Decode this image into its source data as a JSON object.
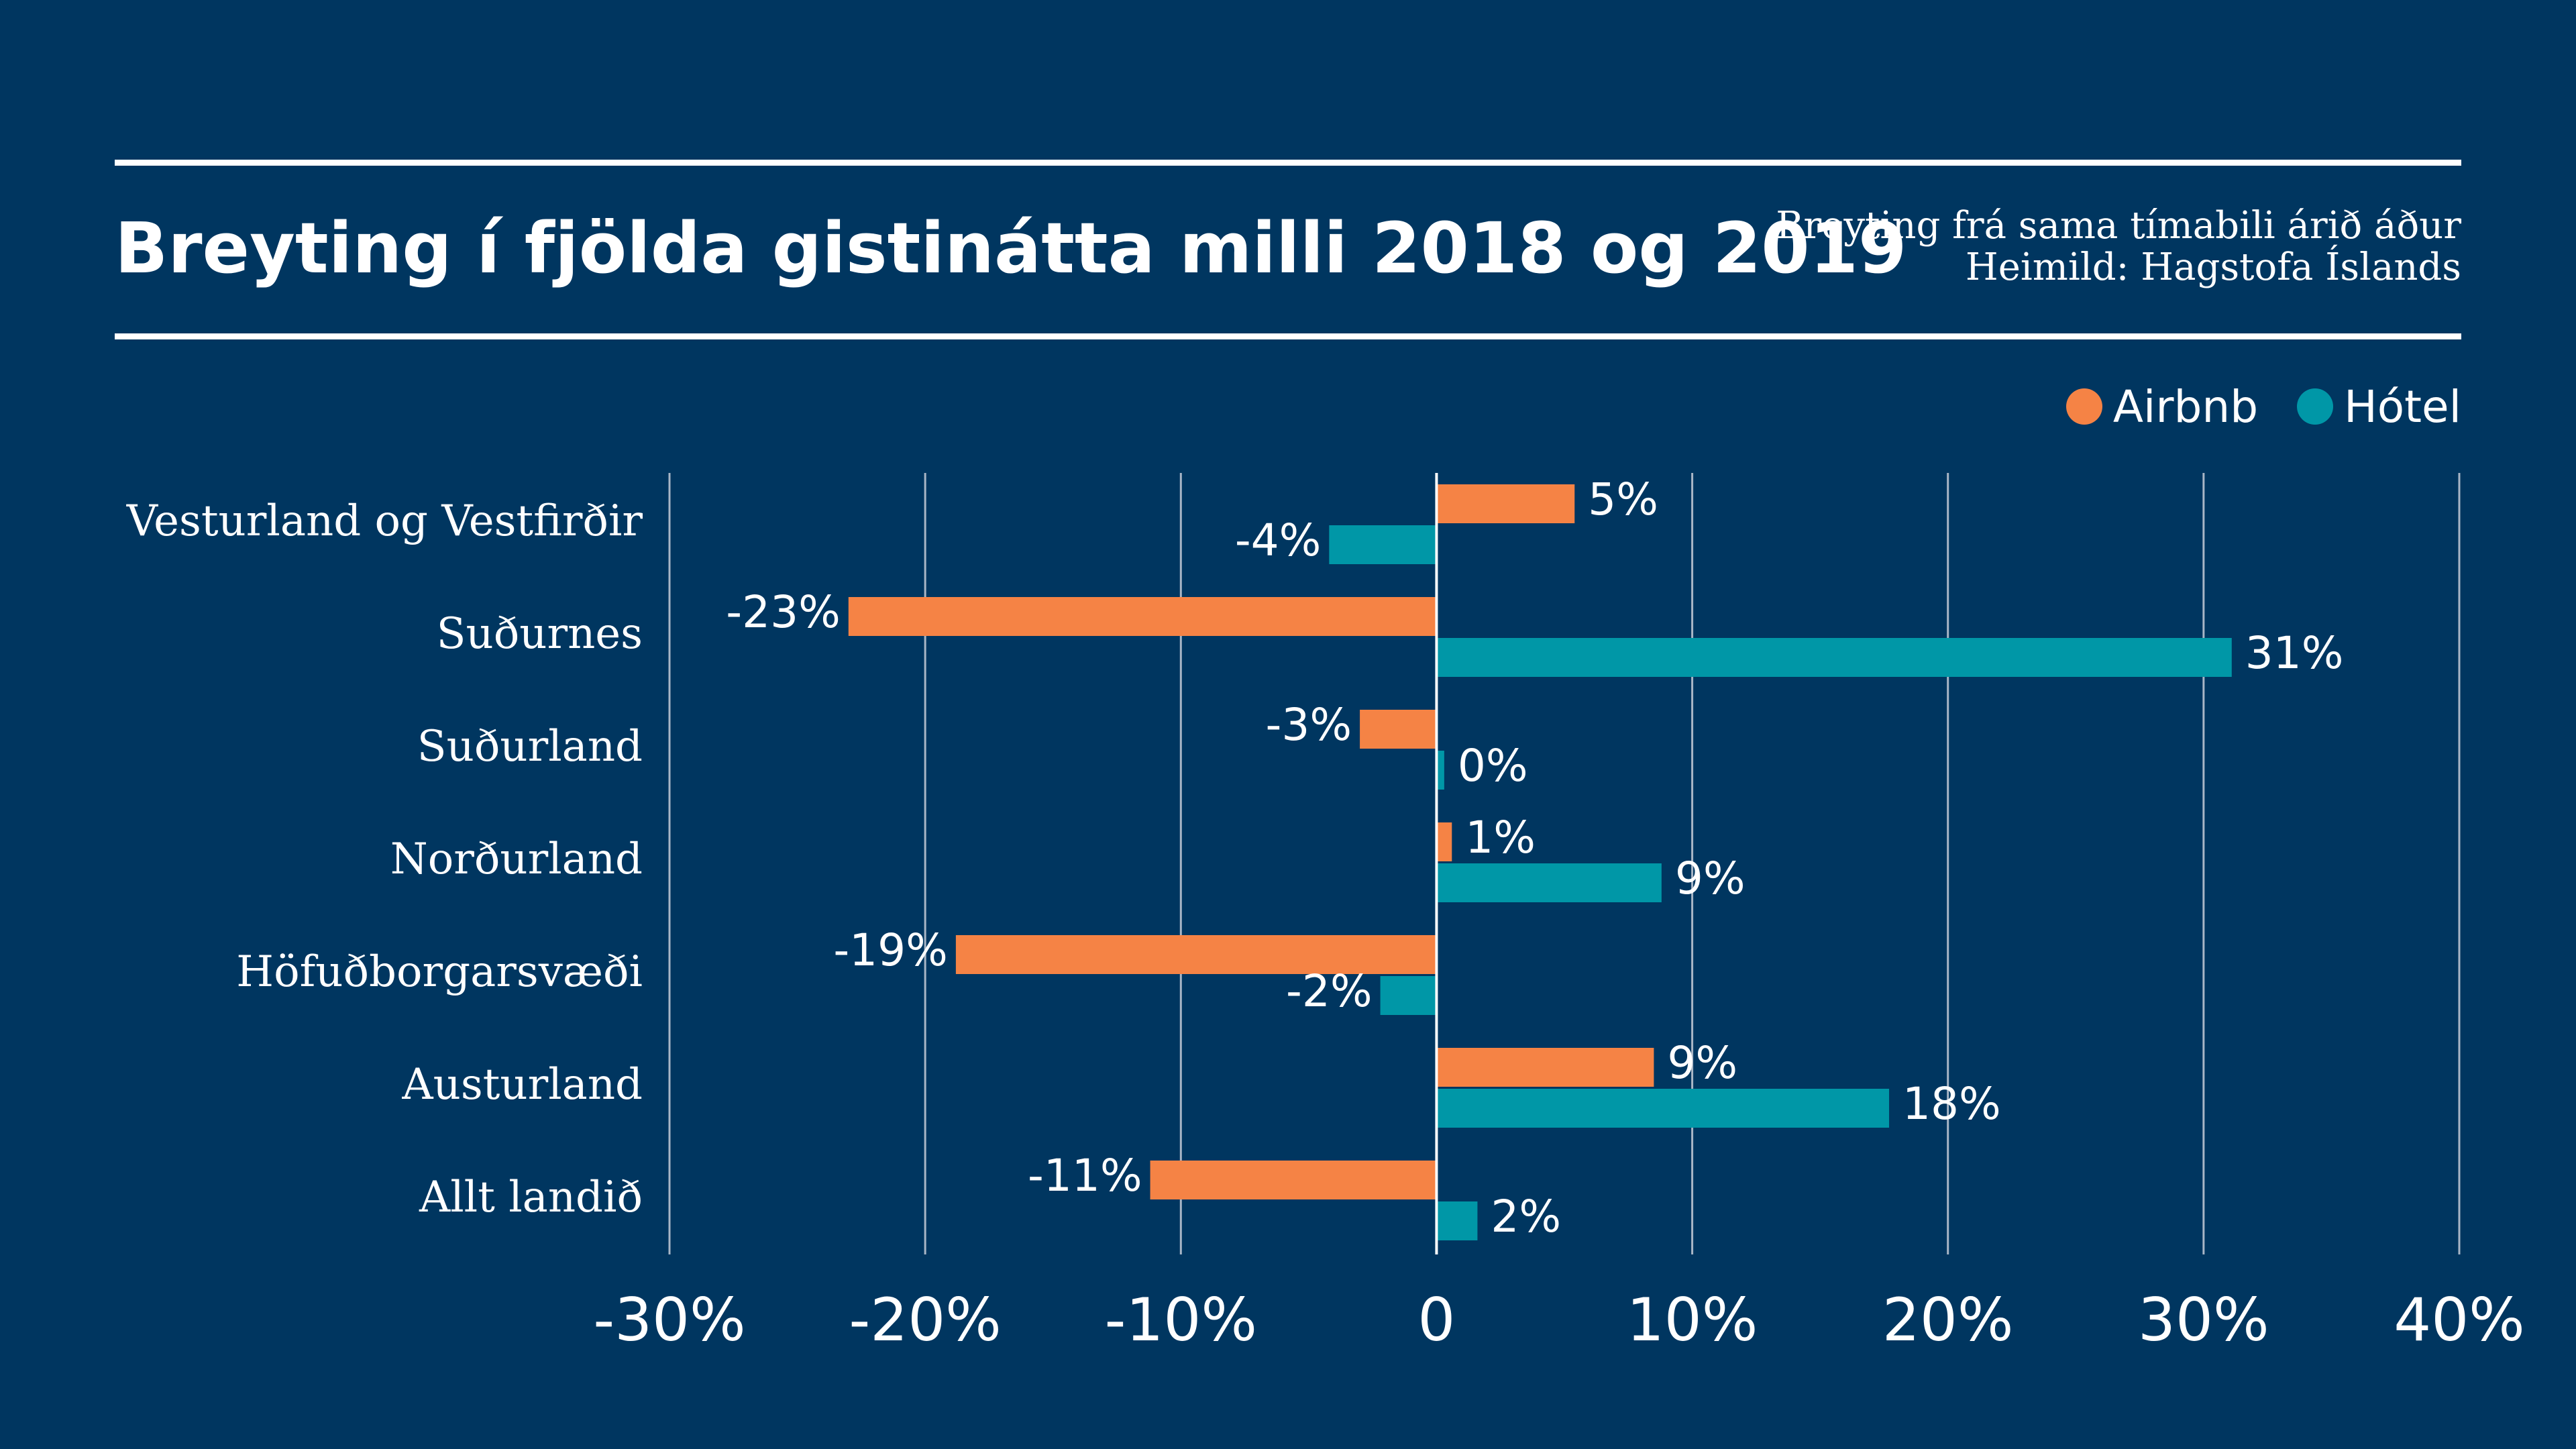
{
  "header": {
    "title": "Breyting í fjölda gistinátta milli 2018 og 2019",
    "subtitle": "Breyting frá sama tímabili árið áður",
    "source": "Heimild: Hagstofa Íslands"
  },
  "colors": {
    "background": "#003660",
    "airbnb": "#F58345",
    "hotel": "#0097A7",
    "gridline": "#A9B6C6",
    "text": "#FFFFFF"
  },
  "chart_data": {
    "type": "bar",
    "orientation": "horizontal",
    "title": "Breyting í fjölda gistinátta milli 2018 og 2019",
    "categories": [
      "Vesturland og Vestfirðir",
      "Suðurnes",
      "Suðurland",
      "Norðurland",
      "Höfuðborgarsvæði",
      "Austurland",
      "Allt landið"
    ],
    "series": [
      {
        "name": "Airbnb",
        "color": "#F58345",
        "values": [
          5.4,
          -23,
          -3,
          0.6,
          -18.8,
          8.5,
          -11.2
        ],
        "labels": [
          "5%",
          "-23%",
          "-3%",
          "1%",
          "-19%",
          "9%",
          "-11%"
        ]
      },
      {
        "name": "Hótel",
        "color": "#0097A7",
        "values": [
          -4.2,
          31.1,
          0.3,
          8.8,
          -2.2,
          17.7,
          1.6
        ],
        "labels": [
          "-4%",
          "31%",
          "0%",
          "9%",
          "-2%",
          "18%",
          "2%"
        ]
      }
    ],
    "xlim": [
      -30,
      40
    ],
    "xticks": [
      -30,
      -20,
      -10,
      0,
      10,
      20,
      30,
      40
    ],
    "xtick_labels": [
      "-30%",
      "-20%",
      "-10%",
      "0",
      "10%",
      "20%",
      "30%",
      "40%"
    ],
    "grid": true,
    "legend_position": "top-right"
  }
}
